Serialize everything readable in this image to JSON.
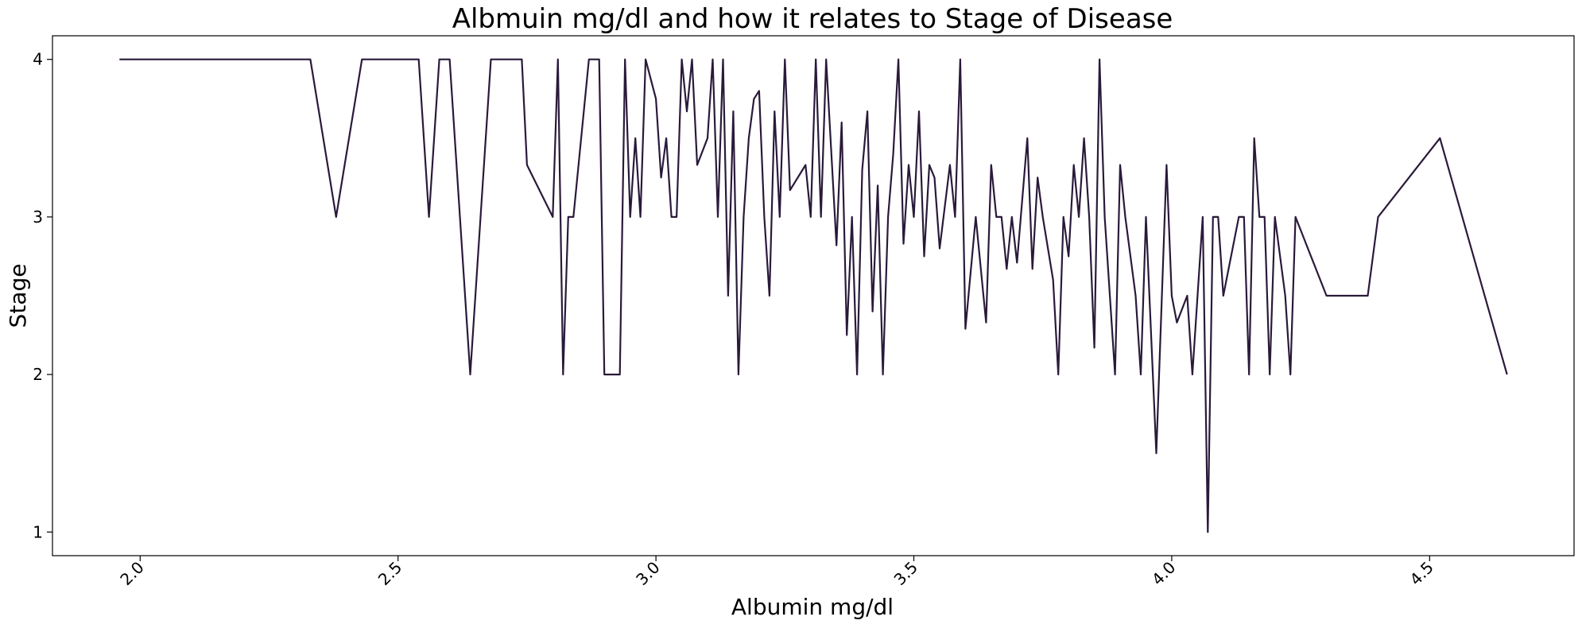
{
  "chart_data": {
    "type": "line",
    "title": "Albmuin mg/dl and how it relates to Stage of Disease",
    "xlabel": "Albumin mg/dl",
    "ylabel": "Stage",
    "xlim": [
      1.83,
      4.78
    ],
    "ylim": [
      0.85,
      4.15
    ],
    "xticks": [
      2.0,
      2.5,
      3.0,
      3.5,
      4.0,
      4.5
    ],
    "xtick_labels": [
      "2.0",
      "2.5",
      "3.0",
      "3.5",
      "4.0",
      "4.5"
    ],
    "yticks": [
      1,
      2,
      3,
      4
    ],
    "ytick_labels": [
      "1",
      "2",
      "3",
      "4"
    ],
    "grid": false,
    "legend": "none",
    "line_color": "#2a1a3a",
    "series": [
      {
        "x": [
          1.96,
          2.33,
          2.38,
          2.43,
          2.54,
          2.56,
          2.58,
          2.6,
          2.64,
          2.68,
          2.74,
          2.75,
          2.8,
          2.81,
          2.82,
          2.83,
          2.84,
          2.87,
          2.89,
          2.9,
          2.93,
          2.94,
          2.95,
          2.96,
          2.97,
          2.98,
          3.0,
          3.01,
          3.02,
          3.03,
          3.04,
          3.05,
          3.06,
          3.07,
          3.08,
          3.1,
          3.11,
          3.12,
          3.13,
          3.14,
          3.15,
          3.16,
          3.17,
          3.18,
          3.19,
          3.2,
          3.21,
          3.22,
          3.23,
          3.24,
          3.25,
          3.26,
          3.29,
          3.3,
          3.31,
          3.32,
          3.33,
          3.35,
          3.36,
          3.37,
          3.38,
          3.39,
          3.4,
          3.41,
          3.42,
          3.43,
          3.44,
          3.45,
          3.46,
          3.47,
          3.48,
          3.49,
          3.5,
          3.51,
          3.52,
          3.53,
          3.54,
          3.55,
          3.57,
          3.58,
          3.59,
          3.6,
          3.62,
          3.64,
          3.65,
          3.66,
          3.67,
          3.68,
          3.69,
          3.7,
          3.72,
          3.73,
          3.74,
          3.75,
          3.77,
          3.78,
          3.79,
          3.8,
          3.81,
          3.82,
          3.83,
          3.84,
          3.85,
          3.86,
          3.87,
          3.89,
          3.9,
          3.91,
          3.93,
          3.94,
          3.95,
          3.97,
          3.99,
          4.0,
          4.01,
          4.03,
          4.04,
          4.06,
          4.07,
          4.08,
          4.09,
          4.1,
          4.13,
          4.14,
          4.15,
          4.16,
          4.17,
          4.18,
          4.19,
          4.2,
          4.22,
          4.23,
          4.24,
          4.3,
          4.38,
          4.4,
          4.52,
          4.65
        ],
        "y": [
          4,
          4,
          3,
          4,
          4,
          3,
          4,
          4,
          2,
          4,
          4,
          3.33,
          3,
          4,
          2,
          3,
          3,
          4,
          4,
          2,
          2,
          4,
          3,
          3.5,
          3,
          4,
          3.75,
          3.25,
          3.5,
          3,
          3,
          4,
          3.67,
          4,
          3.33,
          3.5,
          4,
          3,
          4,
          2.5,
          3.67,
          2,
          3,
          3.5,
          3.75,
          3.8,
          3,
          2.5,
          3.67,
          3,
          4,
          3.17,
          3.33,
          3,
          4,
          3,
          4,
          2.82,
          3.6,
          2.25,
          3,
          2,
          3.3,
          3.67,
          2.4,
          3.2,
          2,
          3,
          3.4,
          4,
          2.83,
          3.33,
          3,
          3.67,
          2.75,
          3.33,
          3.25,
          2.8,
          3.33,
          3,
          4,
          2.29,
          3,
          2.33,
          3.33,
          3,
          3,
          2.67,
          3,
          2.71,
          3.5,
          2.67,
          3.25,
          3,
          2.6,
          2,
          3,
          2.75,
          3.33,
          3,
          3.5,
          3,
          2.17,
          4,
          3,
          2,
          3.33,
          3,
          2.5,
          2,
          3,
          1.5,
          3.33,
          2.5,
          2.33,
          2.5,
          2,
          3,
          1,
          3,
          3,
          2.5,
          3,
          3,
          2,
          3.5,
          3,
          3,
          2,
          3,
          2.5,
          2,
          3,
          2.5,
          2.5,
          3,
          3.5,
          2
        ]
      }
    ]
  }
}
